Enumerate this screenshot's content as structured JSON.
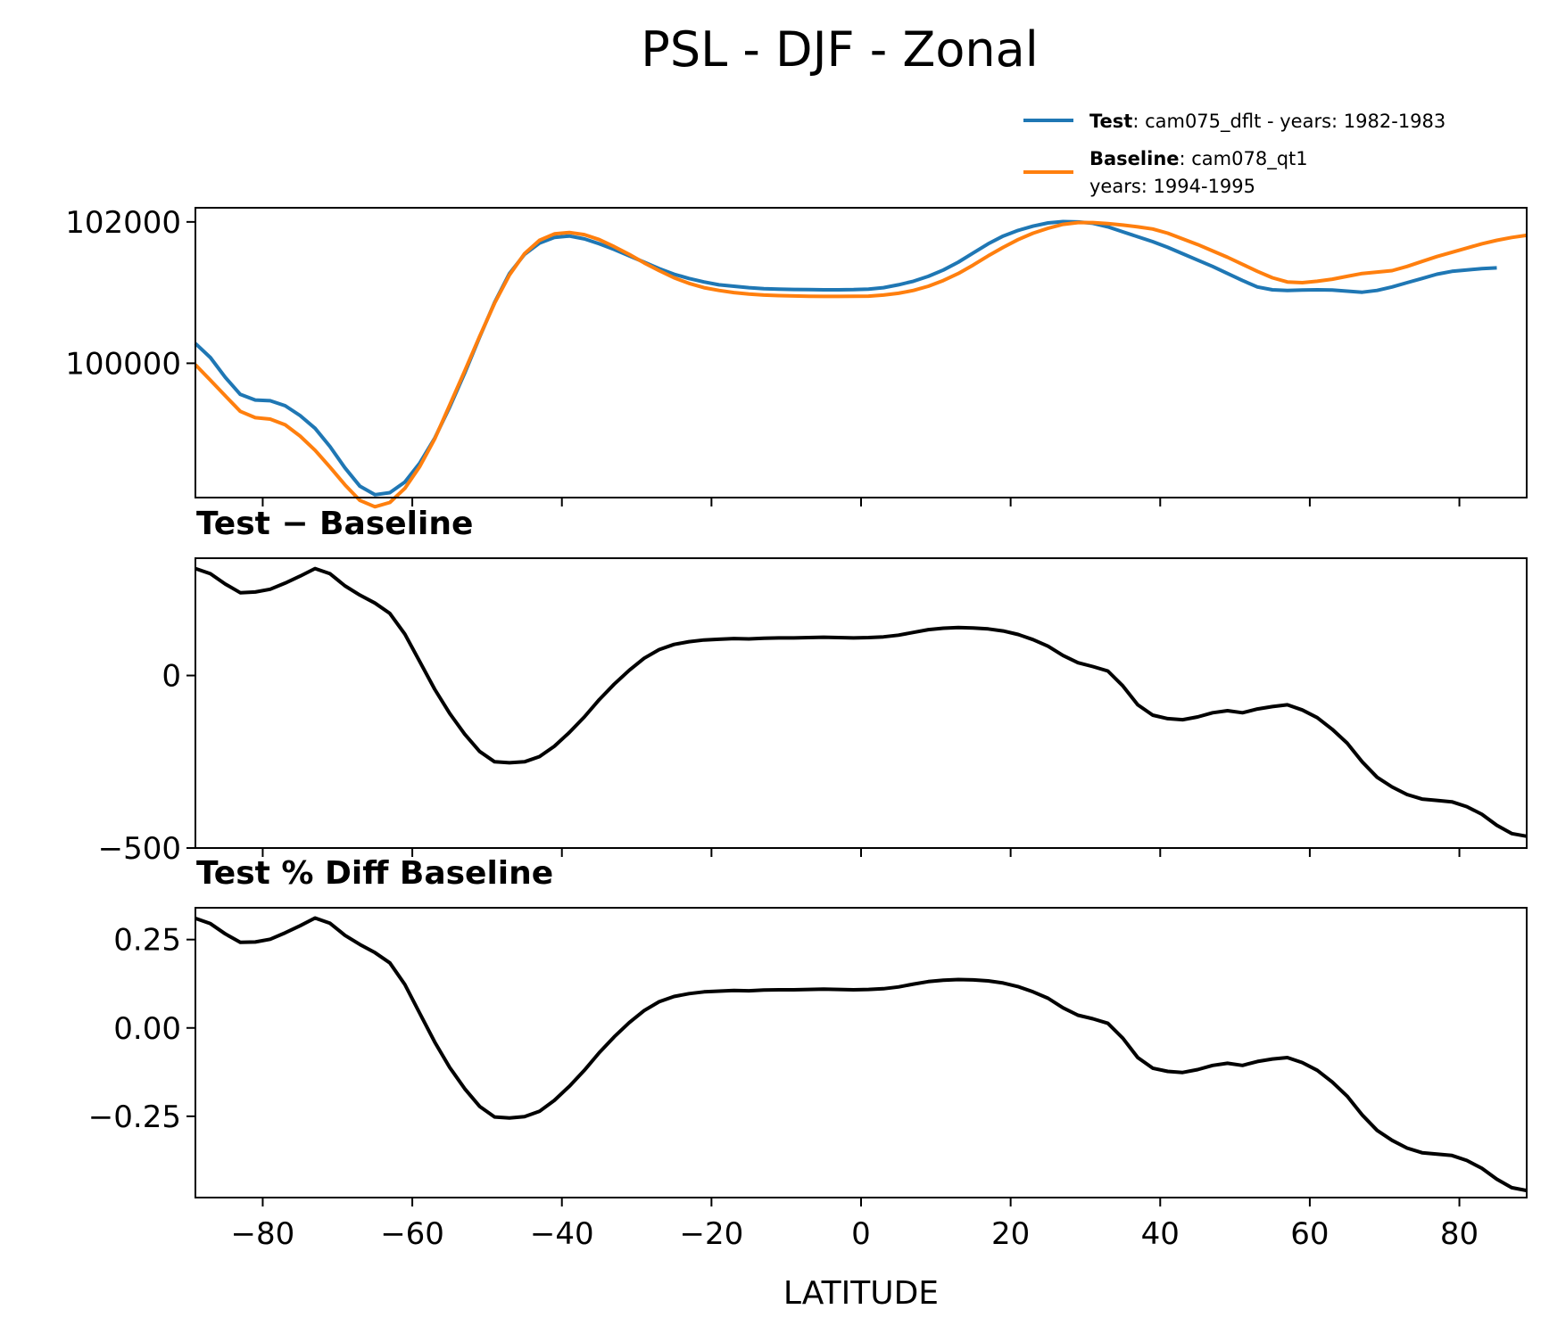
{
  "colors": {
    "test": "#1f77b4",
    "baseline": "#ff7f0e",
    "diff": "#000000"
  },
  "chart_data": {
    "title": "PSL - DJF - Zonal",
    "xlabel": "LATITUDE",
    "xlim": [
      -89,
      89
    ],
    "xticks": [
      -80,
      -60,
      -40,
      -20,
      0,
      20,
      40,
      60,
      80
    ],
    "xtick_labels": [
      "−80",
      "−60",
      "−40",
      "−20",
      "0",
      "20",
      "40",
      "60",
      "80"
    ],
    "legend": {
      "test_bold": "Test",
      "test_text": ": cam075_dflt - years: 1982-1983",
      "baseline_bold": "Baseline",
      "baseline_text": ": cam078_qt1",
      "baseline_text2": "years: 1994-1995"
    },
    "panels": [
      {
        "type": "line",
        "title": "",
        "ylim": [
          98100,
          102200
        ],
        "yticks": [
          100000,
          102000
        ],
        "ytick_labels": [
          "100000",
          "102000"
        ],
        "x": [
          -89,
          -87,
          -85,
          -83,
          -81,
          -79,
          -77,
          -75,
          -73,
          -71,
          -69,
          -67,
          -65,
          -63,
          -61,
          -59,
          -57,
          -55,
          -53,
          -51,
          -49,
          -47,
          -45,
          -43,
          -41,
          -39,
          -37,
          -35,
          -33,
          -31,
          -29,
          -27,
          -25,
          -23,
          -21,
          -19,
          -17,
          -15,
          -13,
          -11,
          -9,
          -7,
          -5,
          -3,
          -1,
          1,
          3,
          5,
          7,
          9,
          11,
          13,
          15,
          17,
          19,
          21,
          23,
          25,
          27,
          29,
          31,
          33,
          35,
          37,
          39,
          41,
          43,
          45,
          47,
          49,
          51,
          53,
          55,
          57,
          59,
          61,
          63,
          65,
          67,
          69,
          71,
          73,
          75,
          77,
          79,
          81,
          83,
          85,
          87,
          89
        ],
        "series": [
          {
            "name": "Test",
            "values": [
              100280,
              100080,
              99800,
              99560,
              99480,
              99470,
              99400,
              99260,
              99080,
              98820,
              98520,
              98260,
              98140,
              98170,
              98320,
              98590,
              98940,
              99380,
              99860,
              100370,
              100860,
              101270,
              101540,
              101700,
              101780,
              101800,
              101760,
              101690,
              101610,
              101520,
              101430,
              101340,
              101260,
              101200,
              101150,
              101110,
              101090,
              101070,
              101055,
              101050,
              101045,
              101042,
              101040,
              101040,
              101042,
              101050,
              101070,
              101110,
              101160,
              101230,
              101320,
              101430,
              101560,
              101690,
              101800,
              101880,
              101940,
              101985,
              102005,
              102000,
              101980,
              101930,
              101860,
              101790,
              101720,
              101640,
              101550,
              101460,
              101370,
              101270,
              101170,
              101080,
              101040,
              101030,
              101035,
              101040,
              101035,
              101020,
              101005,
              101030,
              101080,
              101140,
              101200,
              101260,
              101300,
              101320,
              101340,
              101350
            ],
            "color_key": "test"
          },
          {
            "name": "Baseline",
            "values": [
              99980,
              99760,
              99540,
              99320,
              99230,
              99210,
              99130,
              98970,
              98770,
              98530,
              98280,
              98060,
              97970,
              98030,
              98230,
              98540,
              98930,
              99410,
              99890,
              100380,
              100850,
              101250,
              101550,
              101740,
              101830,
              101850,
              101820,
              101750,
              101650,
              101540,
              101420,
              101310,
              101210,
              101130,
              101070,
              101030,
              101000,
              100980,
              100965,
              100958,
              100952,
              100948,
              100946,
              100946,
              100947,
              100950,
              100965,
              100990,
              101030,
              101090,
              101170,
              101270,
              101390,
              101520,
              101640,
              101750,
              101840,
              101910,
              101965,
              101990,
              101990,
              101975,
              101955,
              101930,
              101900,
              101840,
              101760,
              101680,
              101590,
              101500,
              101400,
              101300,
              101210,
              101150,
              101140,
              101160,
              101190,
              101230,
              101270,
              101290,
              101310,
              101370,
              101440,
              101510,
              101570,
              101630,
              101690,
              101740,
              101780,
              101810
            ],
            "color_key": "baseline"
          }
        ]
      },
      {
        "type": "line",
        "title": "Test − Baseline",
        "ylim": [
          -500,
          340
        ],
        "yticks": [
          -500,
          0
        ],
        "ytick_labels": [
          "−500",
          "0"
        ],
        "series": [
          {
            "name": "Test − Baseline",
            "color_key": "diff",
            "values": [
              310,
              295,
              265,
              240,
              242,
              250,
              268,
              288,
              310,
              295,
              260,
              233,
              210,
              180,
              120,
              40,
              -40,
              -110,
              -170,
              -220,
              -250,
              -253,
              -250,
              -235,
              -205,
              -165,
              -120,
              -70,
              -25,
              15,
              50,
              75,
              90,
              98,
              103,
              105,
              107,
              106,
              108,
              109,
              109,
              110,
              111,
              110,
              109,
              110,
              112,
              117,
              125,
              133,
              137,
              139,
              138,
              135,
              129,
              119,
              104,
              85,
              58,
              37,
              26,
              13,
              -30,
              -85,
              -115,
              -125,
              -128,
              -120,
              -108,
              -102,
              -108,
              -97,
              -90,
              -85,
              -100,
              -122,
              -156,
              -196,
              -250,
              -295,
              -323,
              -345,
              -358,
              -362,
              -366,
              -380,
              -402,
              -434,
              -458,
              -466
            ]
          }
        ]
      },
      {
        "type": "line",
        "title": "Test % Diff Baseline",
        "ylim": [
          -0.48,
          0.34
        ],
        "yticks": [
          -0.25,
          0.0,
          0.25
        ],
        "ytick_labels": [
          "−0.25",
          "0.00",
          "0.25"
        ],
        "series": [
          {
            "name": "Test % Diff Baseline",
            "color_key": "diff",
            "values": [
              0.31,
              0.295,
              0.266,
              0.242,
              0.243,
              0.251,
              0.269,
              0.289,
              0.311,
              0.296,
              0.262,
              0.236,
              0.213,
              0.184,
              0.123,
              0.041,
              -0.04,
              -0.112,
              -0.172,
              -0.222,
              -0.252,
              -0.255,
              -0.251,
              -0.236,
              -0.205,
              -0.165,
              -0.12,
              -0.07,
              -0.025,
              0.015,
              0.049,
              0.074,
              0.089,
              0.097,
              0.102,
              0.104,
              0.106,
              0.105,
              0.107,
              0.108,
              0.108,
              0.109,
              0.11,
              0.109,
              0.108,
              0.109,
              0.111,
              0.116,
              0.124,
              0.131,
              0.135,
              0.137,
              0.136,
              0.133,
              0.127,
              0.117,
              0.102,
              0.084,
              0.057,
              0.036,
              0.026,
              0.013,
              -0.029,
              -0.084,
              -0.114,
              -0.123,
              -0.126,
              -0.118,
              -0.106,
              -0.1,
              -0.106,
              -0.095,
              -0.088,
              -0.084,
              -0.098,
              -0.12,
              -0.153,
              -0.193,
              -0.246,
              -0.29,
              -0.318,
              -0.34,
              -0.353,
              -0.357,
              -0.361,
              -0.375,
              -0.397,
              -0.428,
              -0.452,
              -0.46
            ]
          }
        ]
      }
    ]
  }
}
